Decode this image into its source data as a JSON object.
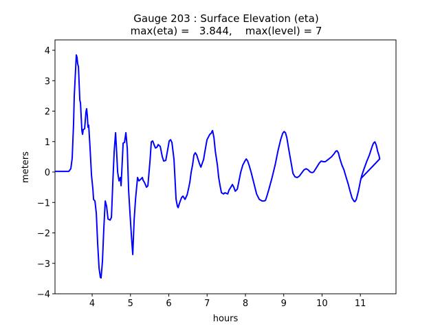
{
  "chart_data": {
    "type": "line",
    "title": "Gauge 203 : Surface Elevation (eta)",
    "subtitle": "max(eta) =   3.844,    max(level) = 7",
    "xlabel": "hours",
    "ylabel": "meters",
    "xlim": [
      3.03,
      11.93
    ],
    "ylim": [
      -4.0,
      4.34
    ],
    "xticks": [
      4,
      5,
      6,
      7,
      8,
      9,
      10,
      11
    ],
    "yticks": [
      -4,
      -3,
      -2,
      -1,
      0,
      1,
      2,
      3,
      4
    ],
    "grid": false,
    "legend": "none",
    "series": [
      {
        "name": "eta",
        "color": "#0000ff",
        "points": [
          [
            3.03,
            0.02
          ],
          [
            3.39,
            0.02
          ],
          [
            3.443,
            0.11
          ],
          [
            3.479,
            0.45
          ],
          [
            3.515,
            1.58
          ],
          [
            3.533,
            2.49
          ],
          [
            3.569,
            3.39
          ],
          [
            3.587,
            3.844
          ],
          [
            3.605,
            3.77
          ],
          [
            3.623,
            3.55
          ],
          [
            3.641,
            3.46
          ],
          [
            3.677,
            2.37
          ],
          [
            3.695,
            2.26
          ],
          [
            3.731,
            1.36
          ],
          [
            3.749,
            1.24
          ],
          [
            3.767,
            1.4
          ],
          [
            3.803,
            1.42
          ],
          [
            3.838,
            1.97
          ],
          [
            3.856,
            2.08
          ],
          [
            3.874,
            1.85
          ],
          [
            3.892,
            1.47
          ],
          [
            3.91,
            1.54
          ],
          [
            3.946,
            0.79
          ],
          [
            3.982,
            -0.11
          ],
          [
            4.018,
            -0.56
          ],
          [
            4.036,
            -0.9
          ],
          [
            4.072,
            -0.95
          ],
          [
            4.108,
            -1.36
          ],
          [
            4.144,
            -2.37
          ],
          [
            4.18,
            -3.16
          ],
          [
            4.215,
            -3.46
          ],
          [
            4.233,
            -3.48
          ],
          [
            4.269,
            -2.94
          ],
          [
            4.305,
            -1.81
          ],
          [
            4.341,
            -0.95
          ],
          [
            4.377,
            -1.13
          ],
          [
            4.413,
            -1.54
          ],
          [
            4.467,
            -1.58
          ],
          [
            4.503,
            -1.49
          ],
          [
            4.539,
            -0.34
          ],
          [
            4.575,
            0.68
          ],
          [
            4.61,
            1.29
          ],
          [
            4.628,
            0.9
          ],
          [
            4.664,
            0.0
          ],
          [
            4.7,
            -0.29
          ],
          [
            4.736,
            -0.18
          ],
          [
            4.754,
            -0.45
          ],
          [
            4.772,
            0.0
          ],
          [
            4.808,
            0.95
          ],
          [
            4.844,
            0.97
          ],
          [
            4.88,
            1.29
          ],
          [
            4.916,
            0.79
          ],
          [
            4.952,
            -0.61
          ],
          [
            4.987,
            -1.36
          ],
          [
            5.023,
            -2.08
          ],
          [
            5.059,
            -2.71
          ],
          [
            5.095,
            -1.58
          ],
          [
            5.131,
            -0.9
          ],
          [
            5.185,
            -0.18
          ],
          [
            5.221,
            -0.29
          ],
          [
            5.257,
            -0.25
          ],
          [
            5.311,
            -0.18
          ],
          [
            5.329,
            -0.27
          ],
          [
            5.364,
            -0.34
          ],
          [
            5.418,
            -0.5
          ],
          [
            5.454,
            -0.45
          ],
          [
            5.508,
            0.34
          ],
          [
            5.544,
            0.99
          ],
          [
            5.58,
            1.02
          ],
          [
            5.616,
            0.9
          ],
          [
            5.652,
            0.79
          ],
          [
            5.688,
            0.81
          ],
          [
            5.724,
            0.9
          ],
          [
            5.777,
            0.84
          ],
          [
            5.831,
            0.5
          ],
          [
            5.867,
            0.36
          ],
          [
            5.921,
            0.38
          ],
          [
            5.957,
            0.63
          ],
          [
            6.011,
            1.02
          ],
          [
            6.047,
            1.06
          ],
          [
            6.083,
            0.97
          ],
          [
            6.136,
            0.41
          ],
          [
            6.19,
            -0.9
          ],
          [
            6.226,
            -1.13
          ],
          [
            6.244,
            -1.17
          ],
          [
            6.28,
            -1.02
          ],
          [
            6.334,
            -0.84
          ],
          [
            6.37,
            -0.79
          ],
          [
            6.424,
            -0.9
          ],
          [
            6.478,
            -0.75
          ],
          [
            6.513,
            -0.56
          ],
          [
            6.549,
            -0.34
          ],
          [
            6.585,
            0.0
          ],
          [
            6.621,
            0.23
          ],
          [
            6.657,
            0.56
          ],
          [
            6.693,
            0.63
          ],
          [
            6.729,
            0.56
          ],
          [
            6.765,
            0.41
          ],
          [
            6.801,
            0.27
          ],
          [
            6.837,
            0.16
          ],
          [
            6.873,
            0.29
          ],
          [
            6.908,
            0.41
          ],
          [
            6.944,
            0.68
          ],
          [
            6.998,
            1.06
          ],
          [
            7.07,
            1.24
          ],
          [
            7.106,
            1.27
          ],
          [
            7.124,
            1.33
          ],
          [
            7.142,
            1.36
          ],
          [
            7.178,
            1.13
          ],
          [
            7.214,
            0.68
          ],
          [
            7.268,
            0.23
          ],
          [
            7.303,
            -0.18
          ],
          [
            7.339,
            -0.45
          ],
          [
            7.375,
            -0.68
          ],
          [
            7.429,
            -0.72
          ],
          [
            7.465,
            -0.68
          ],
          [
            7.501,
            -0.7
          ],
          [
            7.537,
            -0.72
          ],
          [
            7.573,
            -0.59
          ],
          [
            7.609,
            -0.52
          ],
          [
            7.662,
            -0.41
          ],
          [
            7.698,
            -0.5
          ],
          [
            7.734,
            -0.63
          ],
          [
            7.788,
            -0.56
          ],
          [
            7.824,
            -0.34
          ],
          [
            7.878,
            0.0
          ],
          [
            7.932,
            0.23
          ],
          [
            7.986,
            0.36
          ],
          [
            8.022,
            0.43
          ],
          [
            8.057,
            0.36
          ],
          [
            8.093,
            0.23
          ],
          [
            8.147,
            0.0
          ],
          [
            8.183,
            -0.18
          ],
          [
            8.237,
            -0.45
          ],
          [
            8.291,
            -0.72
          ],
          [
            8.363,
            -0.9
          ],
          [
            8.434,
            -0.95
          ],
          [
            8.488,
            -0.95
          ],
          [
            8.524,
            -0.93
          ],
          [
            8.56,
            -0.79
          ],
          [
            8.614,
            -0.56
          ],
          [
            8.686,
            -0.23
          ],
          [
            8.776,
            0.23
          ],
          [
            8.847,
            0.68
          ],
          [
            8.919,
            1.06
          ],
          [
            8.973,
            1.27
          ],
          [
            9.009,
            1.33
          ],
          [
            9.045,
            1.29
          ],
          [
            9.081,
            1.13
          ],
          [
            9.135,
            0.72
          ],
          [
            9.189,
            0.34
          ],
          [
            9.242,
            -0.05
          ],
          [
            9.296,
            -0.16
          ],
          [
            9.35,
            -0.18
          ],
          [
            9.404,
            -0.14
          ],
          [
            9.458,
            -0.05
          ],
          [
            9.53,
            0.07
          ],
          [
            9.583,
            0.11
          ],
          [
            9.637,
            0.07
          ],
          [
            9.691,
            0.0
          ],
          [
            9.745,
            -0.02
          ],
          [
            9.781,
            0.0
          ],
          [
            9.853,
            0.14
          ],
          [
            9.925,
            0.29
          ],
          [
            9.978,
            0.36
          ],
          [
            10.032,
            0.34
          ],
          [
            10.086,
            0.34
          ],
          [
            10.158,
            0.41
          ],
          [
            10.248,
            0.5
          ],
          [
            10.32,
            0.61
          ],
          [
            10.356,
            0.68
          ],
          [
            10.391,
            0.7
          ],
          [
            10.427,
            0.63
          ],
          [
            10.463,
            0.45
          ],
          [
            10.517,
            0.23
          ],
          [
            10.571,
            0.07
          ],
          [
            10.625,
            -0.16
          ],
          [
            10.679,
            -0.38
          ],
          [
            10.732,
            -0.63
          ],
          [
            10.786,
            -0.86
          ],
          [
            10.84,
            -0.97
          ],
          [
            10.858,
            -0.97
          ],
          [
            10.894,
            -0.9
          ],
          [
            10.948,
            -0.63
          ],
          [
            11.002,
            -0.29
          ],
          [
            11.038,
            -0.11
          ],
          [
            11.092,
            0.09
          ],
          [
            11.163,
            0.34
          ],
          [
            11.235,
            0.56
          ],
          [
            11.307,
            0.84
          ],
          [
            11.343,
            0.95
          ],
          [
            11.379,
            0.99
          ],
          [
            11.415,
            0.88
          ],
          [
            11.451,
            0.68
          ],
          [
            11.487,
            0.54
          ],
          [
            11.505,
            0.43
          ],
          [
            11.002,
            -0.23
          ]
        ]
      }
    ]
  }
}
